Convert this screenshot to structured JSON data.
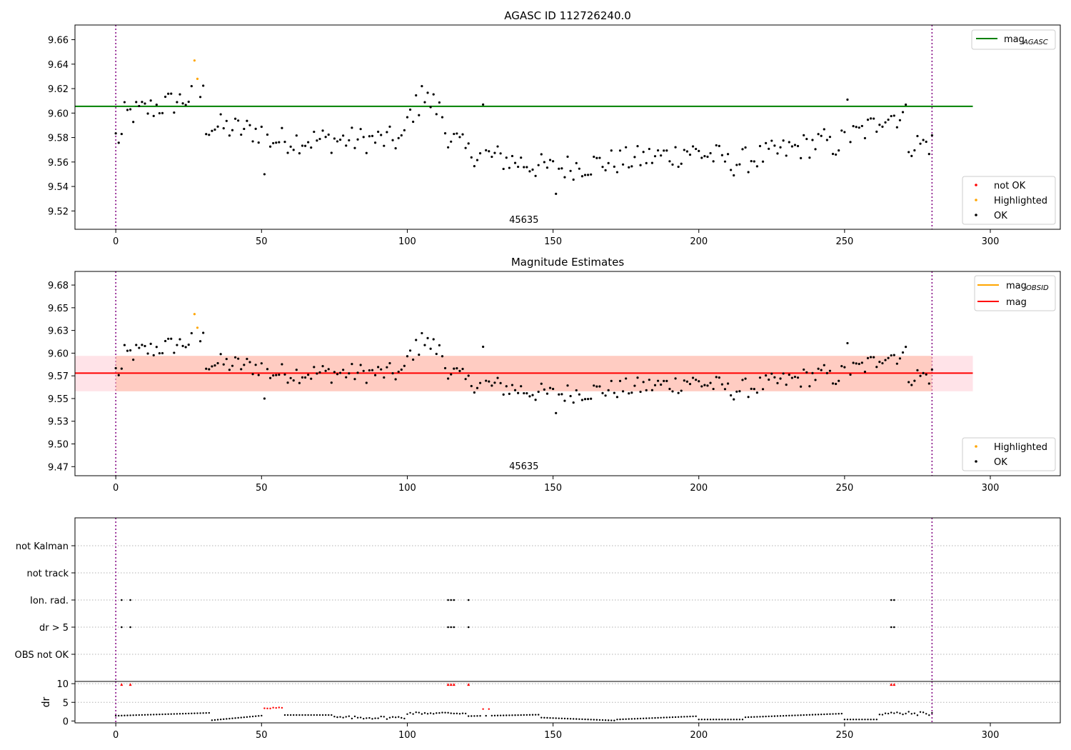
{
  "chart_data": [
    {
      "type": "scatter",
      "title": "AGASC ID 112726240.0",
      "xlim": [
        -14,
        324
      ],
      "ylim": [
        9.505,
        9.672
      ],
      "xticks": [
        0,
        50,
        100,
        150,
        200,
        250,
        300
      ],
      "yticks": [
        9.52,
        9.54,
        9.56,
        9.58,
        9.6,
        9.62,
        9.64,
        9.66
      ],
      "vlines": [
        0,
        280
      ],
      "obsid_label": {
        "text": "45635",
        "x": 140
      },
      "mag_agasc": {
        "value": 9.6055,
        "x_range": [
          -14,
          294
        ]
      },
      "legend_lines": [
        {
          "name": "mag",
          "sub": "AGASC",
          "color": "#008000"
        }
      ],
      "legend_points": [
        {
          "name": "not OK",
          "color": "#ff0000"
        },
        {
          "name": "Highlighted",
          "color": "#ffa500"
        },
        {
          "name": "OK",
          "color": "#000000"
        }
      ],
      "highlighted": [
        [
          27,
          9.643
        ],
        [
          28,
          9.628
        ]
      ]
    },
    {
      "type": "scatter",
      "title": "Magnitude Estimates",
      "xlim": [
        -14,
        324
      ],
      "ylim": [
        9.465,
        9.69
      ],
      "xticks": [
        0,
        50,
        100,
        150,
        200,
        250,
        300
      ],
      "yticks": [
        9.475,
        9.5,
        9.525,
        9.55,
        9.575,
        9.6,
        9.625,
        9.65,
        9.675
      ],
      "vlines": [
        0,
        280
      ],
      "obsid_label": {
        "text": "45635",
        "x": 140
      },
      "mag": 9.578,
      "band_outer": [
        9.558,
        9.597
      ],
      "band_inner": [
        9.558,
        9.597
      ],
      "band_x_range": [
        -14,
        294
      ],
      "mag_obsid_segment": {
        "value": 9.578,
        "x_range": [
          0,
          280
        ]
      },
      "legend_lines": [
        {
          "name": "mag",
          "sub": "OBSID",
          "color": "#ffa500"
        },
        {
          "name": "mag",
          "sub": "",
          "color": "#ff0000"
        }
      ],
      "legend_points": [
        {
          "name": "Highlighted",
          "color": "#ffa500"
        },
        {
          "name": "OK",
          "color": "#000000"
        }
      ],
      "highlighted": [
        [
          27,
          9.643
        ],
        [
          28,
          9.628
        ]
      ]
    },
    {
      "type": "scatter",
      "categories": [
        "OBS not OK",
        "dr > 5",
        "Ion. rad.",
        "not track",
        "not Kalman"
      ],
      "xlim": [
        -14,
        324
      ],
      "vlines": [
        0,
        280
      ],
      "flag_points": {
        "dr > 5": [
          2,
          5,
          114,
          115,
          116,
          121,
          266,
          267
        ],
        "Ion. rad.": [
          2,
          5,
          114,
          115,
          116,
          121,
          266,
          267
        ]
      }
    },
    {
      "type": "scatter",
      "ylabel": "dr",
      "xlim": [
        -14,
        324
      ],
      "ylim": [
        -0.5,
        10.6
      ],
      "yticks": [
        0,
        5,
        10
      ],
      "xticks": [
        0,
        50,
        100,
        150,
        200,
        250,
        300
      ],
      "vlines": [
        0,
        280
      ],
      "marker_y": 10,
      "marker_x": [
        2,
        5,
        114,
        115,
        116,
        121,
        266,
        267
      ]
    }
  ]
}
